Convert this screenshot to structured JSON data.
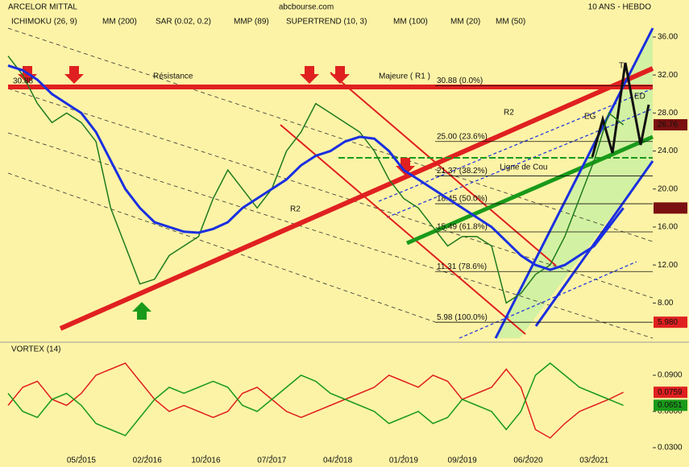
{
  "header": {
    "title": "ARCELOR MITTAL",
    "source": "abcbourse.com",
    "period": "10 ANS - HEBDO"
  },
  "indicators": [
    {
      "name": "ICHIMOKU (26, 9)",
      "color": "#1a8a1a"
    },
    {
      "name": "MM (200)",
      "color": "#1a2fe0"
    },
    {
      "name": "SAR (0.02, 0.2)",
      "color": "#e02020"
    },
    {
      "name": "MMP (89)",
      "color": "#1a2fe0"
    },
    {
      "name": "SUPERTREND (10, 3)",
      "color": "#e02020"
    },
    {
      "name": "MM (100)",
      "color": "#1a8a1a"
    },
    {
      "name": "MM (20)",
      "color": "#e02020"
    },
    {
      "name": "MM (50)",
      "color": "#111111"
    }
  ],
  "annotations": [
    "Résistance",
    "Majeure ( R1 )",
    "R2",
    "R2",
    "Ligne de Cou",
    "EG",
    "T",
    "ED",
    "30.88"
  ],
  "chart_data": [
    {
      "type": "line",
      "x": [
        "2014-07",
        "2014-09",
        "2014-11",
        "2015-01",
        "2015-03",
        "2015-05",
        "2015-07",
        "2015-09",
        "2015-11",
        "2016-01",
        "2016-03",
        "2016-05",
        "2016-07",
        "2016-09",
        "2016-11",
        "2017-01",
        "2017-03",
        "2017-05",
        "2017-07",
        "2017-09",
        "2017-11",
        "2018-01",
        "2018-03",
        "2018-05",
        "2018-07",
        "2018-09",
        "2018-11",
        "2019-01",
        "2019-03",
        "2019-05",
        "2019-07",
        "2019-09",
        "2019-11",
        "2020-01",
        "2020-03",
        "2020-05",
        "2020-07",
        "2020-09",
        "2020-11",
        "2021-01",
        "2021-03",
        "2021-05",
        "2021-07"
      ],
      "series": [
        {
          "color": "#1f7a1f",
          "values": [
            34,
            32,
            29,
            27,
            28,
            27,
            25,
            18,
            14,
            10,
            10.5,
            13,
            14,
            15,
            19,
            22,
            20,
            18,
            20,
            24,
            26,
            29,
            28,
            27,
            26,
            24,
            21,
            19,
            18,
            16,
            14,
            15,
            15,
            14,
            8,
            9,
            11,
            12,
            15,
            19,
            23,
            28,
            26.76
          ]
        },
        {
          "color": "#1a2fe0",
          "values": [
            33,
            32.5,
            31.5,
            30,
            29,
            28,
            26,
            23,
            20,
            18,
            16.5,
            16,
            15.5,
            15.4,
            15.8,
            16.5,
            18,
            19,
            20,
            21,
            22.5,
            23.5,
            24,
            25,
            25.5,
            25.3,
            24,
            22,
            21,
            20,
            19,
            18,
            17,
            16,
            14.5,
            13,
            12,
            11.5,
            12,
            13,
            14,
            16,
            18
          ]
        }
      ],
      "xlim": [
        "2014-07",
        "2021-11"
      ],
      "xticks": [
        {
          "value": "2015-05",
          "label": "05/2015"
        },
        {
          "value": "2016-02",
          "label": "02/2016"
        },
        {
          "value": "2016-10",
          "label": "10/2016"
        },
        {
          "value": "2017-07",
          "label": "07/2017"
        },
        {
          "value": "2018-04",
          "label": "04/2018"
        },
        {
          "value": "2019-01",
          "label": "01/2019"
        },
        {
          "value": "2019-09",
          "label": "09/2019"
        },
        {
          "value": "2020-06",
          "label": "06/2020"
        },
        {
          "value": "2021-03",
          "label": "03/2021"
        }
      ],
      "ylim": [
        4.3,
        38.2
      ],
      "yticks": [
        {
          "value": 8,
          "label": "8.00"
        },
        {
          "value": 12,
          "label": "12.00"
        },
        {
          "value": 16,
          "label": "16.00"
        },
        {
          "value": 20,
          "label": "20.00"
        },
        {
          "value": 24,
          "label": "24.00"
        },
        {
          "value": 28,
          "label": "28.00"
        },
        {
          "value": 32,
          "label": "32.00"
        },
        {
          "value": 36,
          "label": "36.00"
        }
      ],
      "levels": [
        {
          "value": 30.88,
          "label": "30.88 (0.0%)"
        },
        {
          "value": 25,
          "label": "25.00 (23.6%)"
        },
        {
          "value": 21.37,
          "label": "21.37 (38.2%)"
        },
        {
          "value": 18.45,
          "label": "18.45 (50.0%)"
        },
        {
          "value": 15.49,
          "label": "15.49 (61.8%)"
        },
        {
          "value": 11.31,
          "label": "11.31 (78.6%)"
        },
        {
          "value": 5.98,
          "label": "5.98 (100.0%)"
        }
      ],
      "markers": [
        {
          "value": 5.98,
          "label": "5.980",
          "color": "#e02020"
        }
      ]
    },
    {
      "type": "line",
      "title": "VORTEX (14)",
      "x": [
        "2014-07",
        "2014-09",
        "2014-11",
        "2015-01",
        "2015-03",
        "2015-05",
        "2015-07",
        "2015-09",
        "2015-11",
        "2016-01",
        "2016-03",
        "2016-05",
        "2016-07",
        "2016-09",
        "2016-11",
        "2017-01",
        "2017-03",
        "2017-05",
        "2017-07",
        "2017-09",
        "2017-11",
        "2018-01",
        "2018-03",
        "2018-05",
        "2018-07",
        "2018-09",
        "2018-11",
        "2019-01",
        "2019-03",
        "2019-05",
        "2019-07",
        "2019-09",
        "2019-11",
        "2020-01",
        "2020-03",
        "2020-05",
        "2020-07",
        "2020-09",
        "2020-11",
        "2021-01",
        "2021-03",
        "2021-05",
        "2021-07"
      ],
      "series": [
        {
          "color": "#e02020",
          "values": [
            0.065,
            0.08,
            0.085,
            0.07,
            0.065,
            0.075,
            0.09,
            0.095,
            0.1,
            0.085,
            0.07,
            0.06,
            0.065,
            0.06,
            0.055,
            0.06,
            0.075,
            0.08,
            0.07,
            0.06,
            0.055,
            0.06,
            0.065,
            0.07,
            0.075,
            0.08,
            0.09,
            0.085,
            0.08,
            0.09,
            0.085,
            0.07,
            0.075,
            0.08,
            0.095,
            0.08,
            0.045,
            0.038,
            0.05,
            0.06,
            0.065,
            0.07,
            0.0759
          ]
        },
        {
          "color": "#1a9a1a",
          "values": [
            0.075,
            0.06,
            0.055,
            0.07,
            0.075,
            0.065,
            0.05,
            0.045,
            0.04,
            0.055,
            0.07,
            0.08,
            0.075,
            0.08,
            0.085,
            0.08,
            0.065,
            0.06,
            0.07,
            0.08,
            0.09,
            0.085,
            0.075,
            0.07,
            0.065,
            0.06,
            0.05,
            0.055,
            0.06,
            0.05,
            0.055,
            0.07,
            0.065,
            0.06,
            0.045,
            0.06,
            0.09,
            0.1,
            0.09,
            0.08,
            0.075,
            0.07,
            0.0651
          ]
        }
      ],
      "xlim": [
        "2014-07",
        "2021-11"
      ],
      "ylim": [
        0.024,
        0.1087
      ],
      "yticks": [
        {
          "value": 0.03,
          "label": "0.0300"
        },
        {
          "value": 0.06,
          "label": "0.0600"
        },
        {
          "value": 0.09,
          "label": "0.0900"
        }
      ]
    }
  ]
}
